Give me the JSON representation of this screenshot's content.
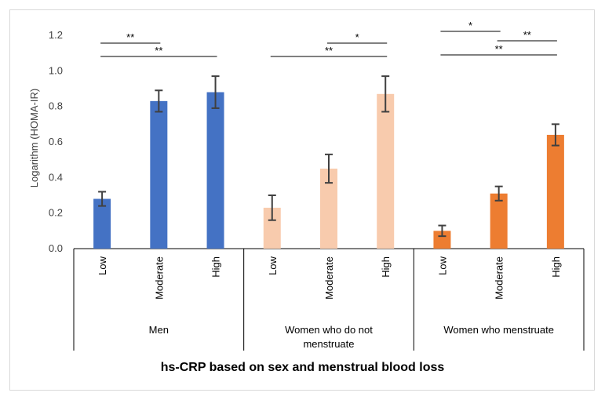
{
  "chart_data": {
    "type": "bar",
    "title": "hs-CRP based on sex and menstrual blood loss",
    "ylabel": "Logarithm (HOMA-IR)",
    "ylim": [
      0,
      1.2
    ],
    "yticks": [
      "0.0",
      "0.2",
      "0.4",
      "0.6",
      "0.8",
      "1.0",
      "1.2"
    ],
    "ytick_values": [
      0,
      0.2,
      0.4,
      0.6,
      0.8,
      1.0,
      1.2
    ],
    "groups": [
      {
        "name": "Men",
        "name_lines": [
          "Men"
        ],
        "color": "#4472c4",
        "categories": [
          "Low",
          "Moderate",
          "High"
        ],
        "values": [
          0.28,
          0.83,
          0.88
        ],
        "errors": [
          0.04,
          0.06,
          0.09
        ]
      },
      {
        "name": "Women who do not menstruate",
        "name_lines": [
          "Women who do not",
          "menstruate"
        ],
        "color": "#f8cbad",
        "categories": [
          "Low",
          "Moderate",
          "High"
        ],
        "values": [
          0.23,
          0.45,
          0.87
        ],
        "errors": [
          0.07,
          0.08,
          0.1
        ]
      },
      {
        "name": "Women who menstruate",
        "name_lines": [
          "Women who menstruate"
        ],
        "color": "#ed7d31",
        "categories": [
          "Low",
          "Moderate",
          "High"
        ],
        "values": [
          0.1,
          0.31,
          0.64
        ],
        "errors": [
          0.03,
          0.04,
          0.06
        ]
      }
    ],
    "significance": [
      {
        "group": 0,
        "from": 0,
        "to": 1,
        "label": "**"
      },
      {
        "group": 0,
        "from": 0,
        "to": 2,
        "label": "**"
      },
      {
        "group": 1,
        "from": 1,
        "to": 2,
        "label": "*"
      },
      {
        "group": 1,
        "from": 0,
        "to": 2,
        "label": "**"
      },
      {
        "group": 2,
        "from": 0,
        "to": 1,
        "label": "*"
      },
      {
        "group": 2,
        "from": 1,
        "to": 2,
        "label": "**"
      },
      {
        "group": 2,
        "from": 0,
        "to": 2,
        "label": "**"
      }
    ]
  }
}
